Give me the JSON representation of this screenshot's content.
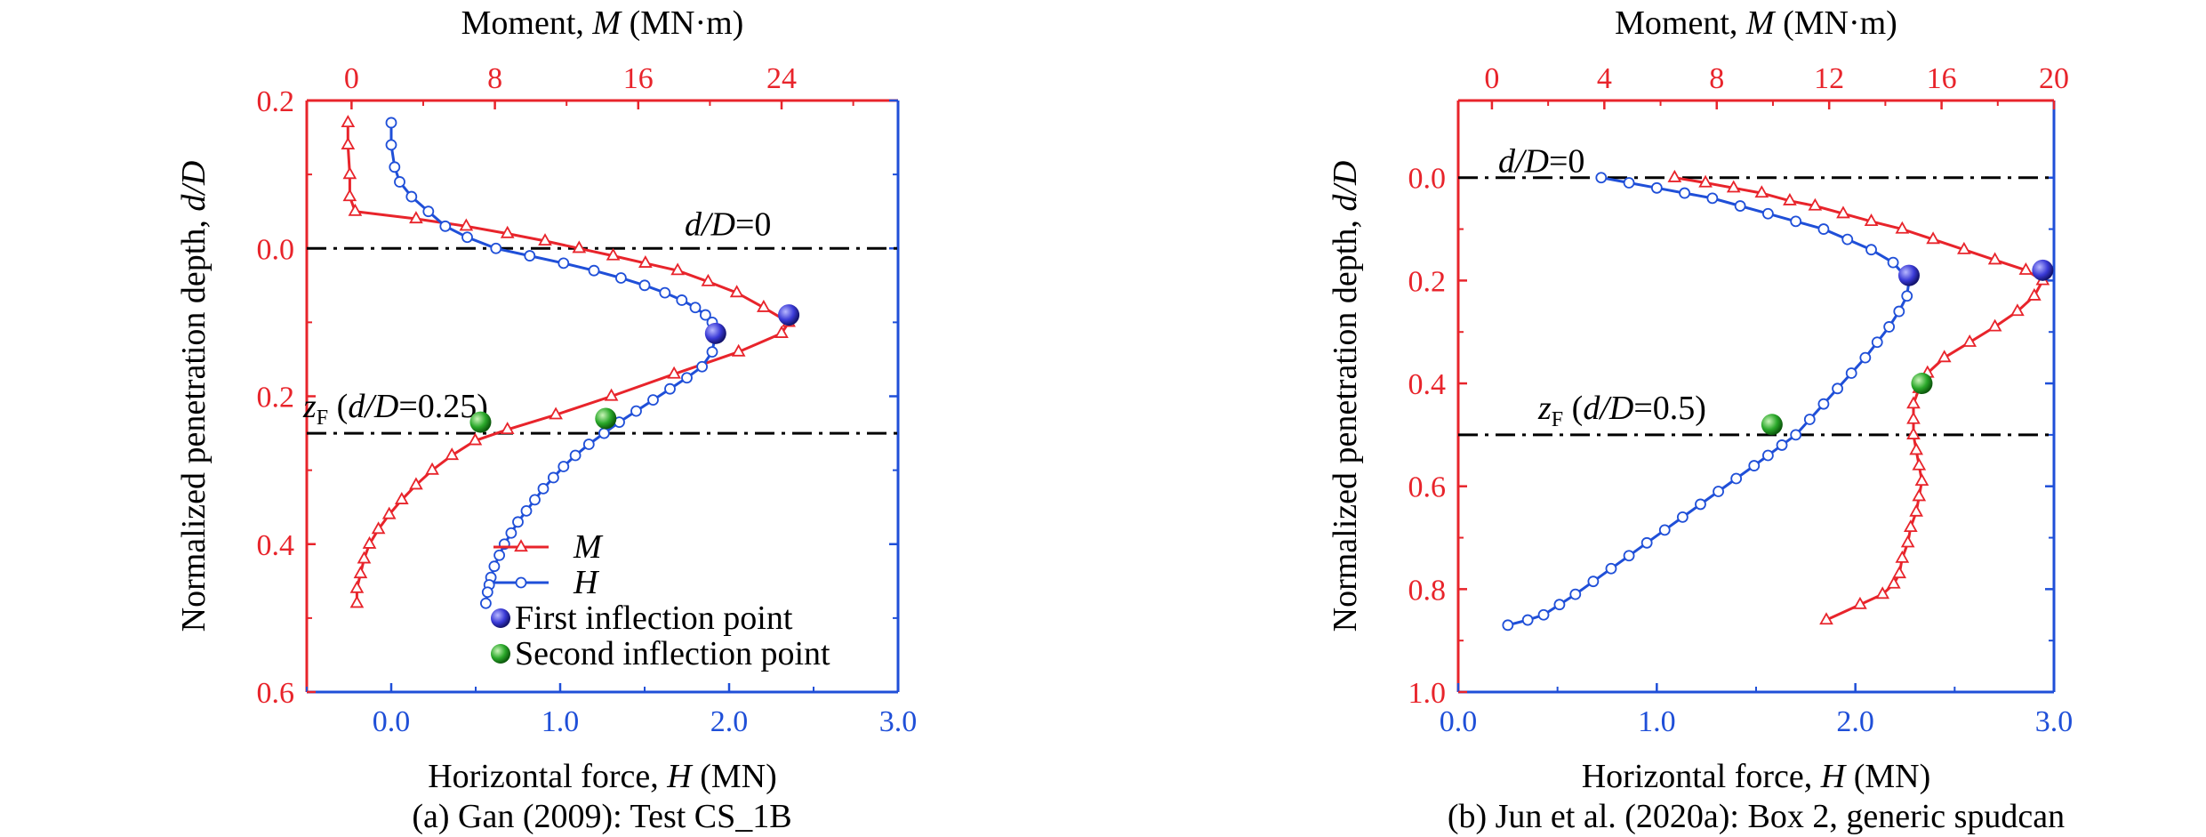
{
  "colors": {
    "moment": "#e8242b",
    "horizontal": "#1f4fd8",
    "first_inflection": "#3a3ad6",
    "second_inflection": "#2aa82a",
    "reference": "#000000"
  },
  "chart_data": [
    {
      "type": "line",
      "caption": "(a) Gan (2009): Test CS_1B",
      "top_axis": {
        "label_prefix": "Moment, ",
        "label_var": "M",
        "label_suffix": " (MN·m)",
        "range": [
          -2.5,
          30.5
        ],
        "ticks": [
          0,
          8,
          16,
          24
        ],
        "tick_labels": [
          "0",
          "8",
          "16",
          "24"
        ]
      },
      "bottom_axis": {
        "label_prefix": "Horizontal force, ",
        "label_var": "H",
        "label_suffix": " (MN)",
        "range": [
          -0.5,
          3.0
        ],
        "ticks": [
          0.0,
          1.0,
          2.0,
          3.0
        ],
        "tick_labels": [
          "0.0",
          "1.0",
          "2.0",
          "3.0"
        ]
      },
      "y_axis": {
        "label_prefix": "Normalized penetration depth, ",
        "label_var": "d/D",
        "range": [
          -0.2,
          0.6
        ],
        "ticks": [
          -0.2,
          0.0,
          0.2,
          0.4,
          0.6
        ],
        "tick_labels": [
          "0.2",
          "0.0",
          "0.2",
          "0.4",
          "0.6"
        ],
        "inverted": true
      },
      "grid": false,
      "ref_lines": [
        {
          "y": 0.0,
          "label_var": "d/D",
          "label_text": "=0"
        },
        {
          "y": 0.25,
          "label_sym": "z",
          "label_sub": "F",
          "label_open": " (",
          "label_var": "d/D",
          "label_text": "=0.25)"
        }
      ],
      "legend": {
        "position": "bottom-right",
        "entries": [
          {
            "key": "M",
            "series": "M"
          },
          {
            "key": "H",
            "series": "H"
          },
          {
            "key": "first",
            "text": "First inflection point"
          },
          {
            "key": "second",
            "text": "Second inflection point"
          }
        ]
      },
      "series": [
        {
          "name": "M",
          "axis": "top",
          "marker": "triangle",
          "x": [
            -0.2,
            -0.2,
            -0.1,
            -0.1,
            0.2,
            3.6,
            6.4,
            8.7,
            10.8,
            12.7,
            14.6,
            16.4,
            18.2,
            19.9,
            21.5,
            23.0,
            24.4,
            24.0,
            21.6,
            18.0,
            14.5,
            11.4,
            8.7,
            6.9,
            5.6,
            4.5,
            3.6,
            2.8,
            2.1,
            1.5,
            1.0,
            0.7,
            0.5,
            0.3,
            0.3
          ],
          "y": [
            -0.17,
            -0.14,
            -0.1,
            -0.07,
            -0.05,
            -0.04,
            -0.03,
            -0.02,
            -0.01,
            0.0,
            0.01,
            0.02,
            0.03,
            0.045,
            0.06,
            0.08,
            0.1,
            0.115,
            0.14,
            0.17,
            0.2,
            0.225,
            0.245,
            0.26,
            0.28,
            0.3,
            0.32,
            0.34,
            0.36,
            0.38,
            0.4,
            0.42,
            0.44,
            0.46,
            0.48
          ]
        },
        {
          "name": "H",
          "axis": "bottom",
          "marker": "circle",
          "x": [
            0.0,
            0.0,
            0.02,
            0.05,
            0.12,
            0.22,
            0.32,
            0.45,
            0.62,
            0.82,
            1.02,
            1.2,
            1.36,
            1.5,
            1.62,
            1.72,
            1.8,
            1.86,
            1.9,
            1.92,
            1.9,
            1.84,
            1.75,
            1.65,
            1.55,
            1.45,
            1.35,
            1.26,
            1.17,
            1.09,
            1.02,
            0.96,
            0.9,
            0.85,
            0.8,
            0.75,
            0.71,
            0.67,
            0.64,
            0.61,
            0.59,
            0.58,
            0.57,
            0.56
          ],
          "y": [
            -0.17,
            -0.14,
            -0.11,
            -0.09,
            -0.07,
            -0.05,
            -0.03,
            -0.015,
            0.0,
            0.01,
            0.02,
            0.03,
            0.04,
            0.05,
            0.06,
            0.07,
            0.08,
            0.09,
            0.1,
            0.115,
            0.14,
            0.16,
            0.175,
            0.19,
            0.205,
            0.22,
            0.235,
            0.25,
            0.265,
            0.28,
            0.295,
            0.31,
            0.325,
            0.34,
            0.355,
            0.37,
            0.385,
            0.4,
            0.415,
            0.43,
            0.445,
            0.455,
            0.465,
            0.48
          ]
        }
      ],
      "inflection_points": [
        {
          "kind": "first",
          "axis": "top",
          "x": 24.4,
          "y": 0.09
        },
        {
          "kind": "first",
          "axis": "bottom",
          "x": 1.92,
          "y": 0.115
        },
        {
          "kind": "second",
          "axis": "top",
          "x": 7.2,
          "y": 0.235
        },
        {
          "kind": "second",
          "axis": "bottom",
          "x": 1.27,
          "y": 0.23
        }
      ]
    },
    {
      "type": "line",
      "caption": "(b) Jun et al. (2020a): Box 2, generic spudcan",
      "top_axis": {
        "label_prefix": "Moment, ",
        "label_var": "M",
        "label_suffix": " (MN·m)",
        "range": [
          -1.2,
          20.0
        ],
        "ticks": [
          0,
          4,
          8,
          12,
          16,
          20
        ],
        "tick_labels": [
          "0",
          "4",
          "8",
          "12",
          "16",
          "20"
        ]
      },
      "bottom_axis": {
        "label_prefix": "Horizontal force, ",
        "label_var": "H",
        "label_suffix": " (MN)",
        "range": [
          0.0,
          3.0
        ],
        "ticks": [
          0.0,
          1.0,
          2.0,
          3.0
        ],
        "tick_labels": [
          "0.0",
          "1.0",
          "2.0",
          "3.0"
        ]
      },
      "y_axis": {
        "label_prefix": "Normalized penetration depth, ",
        "label_var": "d/D",
        "range": [
          -0.15,
          1.0
        ],
        "ticks": [
          0.0,
          0.2,
          0.4,
          0.6,
          0.8,
          1.0
        ],
        "tick_labels": [
          "0.0",
          "0.2",
          "0.4",
          "0.6",
          "0.8",
          "1.0"
        ],
        "inverted": true
      },
      "grid": false,
      "ref_lines": [
        {
          "y": 0.0,
          "label_var": "d/D",
          "label_text": "=0"
        },
        {
          "y": 0.5,
          "label_sym": "z",
          "label_sub": "F",
          "label_open": " (",
          "label_var": "d/D",
          "label_text": "=0.5)"
        }
      ],
      "legend": null,
      "series": [
        {
          "name": "M",
          "axis": "top",
          "marker": "triangle",
          "x": [
            6.5,
            7.6,
            8.6,
            9.6,
            10.6,
            11.5,
            12.5,
            13.5,
            14.6,
            15.7,
            16.8,
            17.9,
            19.0,
            19.6,
            19.3,
            18.7,
            17.9,
            17.0,
            16.1,
            15.5,
            15.2,
            15.0,
            15.0,
            15.0,
            15.1,
            15.2,
            15.3,
            15.2,
            15.1,
            14.9,
            14.8,
            14.6,
            14.5,
            14.3,
            13.9,
            13.1,
            11.9
          ],
          "y": [
            0.0,
            0.01,
            0.02,
            0.03,
            0.045,
            0.055,
            0.07,
            0.085,
            0.1,
            0.12,
            0.14,
            0.16,
            0.18,
            0.2,
            0.23,
            0.26,
            0.29,
            0.32,
            0.35,
            0.38,
            0.41,
            0.44,
            0.47,
            0.5,
            0.53,
            0.56,
            0.59,
            0.62,
            0.65,
            0.68,
            0.71,
            0.74,
            0.77,
            0.79,
            0.81,
            0.83,
            0.86
          ]
        },
        {
          "name": "H",
          "axis": "bottom",
          "marker": "circle",
          "x": [
            0.72,
            0.86,
            1.0,
            1.14,
            1.28,
            1.42,
            1.56,
            1.7,
            1.84,
            1.96,
            2.08,
            2.19,
            2.27,
            2.26,
            2.22,
            2.17,
            2.11,
            2.05,
            1.98,
            1.91,
            1.84,
            1.77,
            1.7,
            1.63,
            1.56,
            1.49,
            1.4,
            1.31,
            1.22,
            1.13,
            1.04,
            0.95,
            0.86,
            0.77,
            0.68,
            0.59,
            0.51,
            0.43,
            0.35,
            0.25
          ],
          "y": [
            0.0,
            0.01,
            0.02,
            0.03,
            0.04,
            0.055,
            0.07,
            0.085,
            0.1,
            0.12,
            0.14,
            0.165,
            0.2,
            0.23,
            0.26,
            0.29,
            0.32,
            0.35,
            0.38,
            0.41,
            0.44,
            0.47,
            0.5,
            0.52,
            0.54,
            0.56,
            0.585,
            0.61,
            0.635,
            0.66,
            0.685,
            0.71,
            0.735,
            0.76,
            0.785,
            0.81,
            0.83,
            0.85,
            0.86,
            0.87
          ]
        }
      ],
      "inflection_points": [
        {
          "kind": "first",
          "axis": "top",
          "x": 19.6,
          "y": 0.18
        },
        {
          "kind": "first",
          "axis": "bottom",
          "x": 2.27,
          "y": 0.19
        },
        {
          "kind": "second",
          "axis": "top",
          "x": 15.3,
          "y": 0.4
        },
        {
          "kind": "second",
          "axis": "bottom",
          "x": 1.58,
          "y": 0.48
        }
      ]
    }
  ]
}
